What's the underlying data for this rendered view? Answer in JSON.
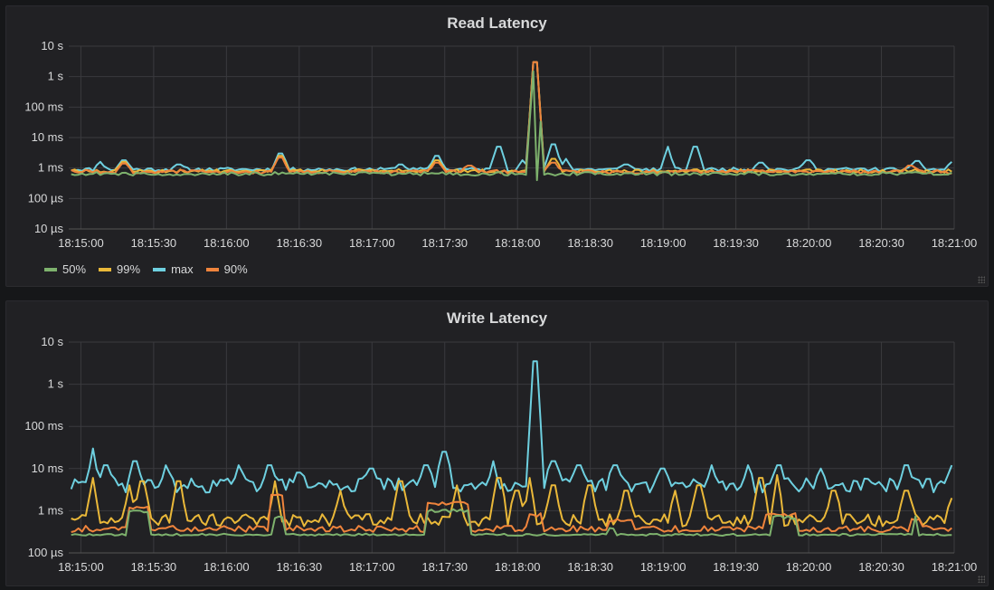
{
  "panels": [
    {
      "title": "Read Latency"
    },
    {
      "title": "Write Latency"
    }
  ],
  "colors": {
    "50%": "#7eb26d",
    "99%": "#eab839",
    "max": "#6ed0e0",
    "90%": "#ef843c"
  },
  "chart_data": [
    {
      "type": "line",
      "title": "Read Latency",
      "y_scale": "log",
      "ylim_seconds": [
        1e-05,
        10
      ],
      "y_ticks": [
        {
          "value": 10,
          "label": "10 s"
        },
        {
          "value": 1,
          "label": "1 s"
        },
        {
          "value": 0.1,
          "label": "100 ms"
        },
        {
          "value": 0.01,
          "label": "10 ms"
        },
        {
          "value": 0.001,
          "label": "1 ms"
        },
        {
          "value": 0.0001,
          "label": "100 µs"
        },
        {
          "value": 1e-05,
          "label": "10 µs"
        }
      ],
      "x_range": [
        "18:14:55",
        "18:21:00"
      ],
      "x_ticks": [
        "18:15:00",
        "18:15:30",
        "18:16:00",
        "18:16:30",
        "18:17:00",
        "18:17:30",
        "18:18:00",
        "18:18:30",
        "18:19:00",
        "18:19:30",
        "18:20:00",
        "18:20:30",
        "18:21:00"
      ],
      "legend": [
        "50%",
        "99%",
        "max",
        "90%"
      ],
      "legend_placement": "bottom-left",
      "grid": true,
      "series": [
        {
          "name": "max",
          "baseline_seconds": 0.0009,
          "spikes": [
            [
              "18:15:08",
              0.0016
            ],
            [
              "18:15:18",
              0.0018
            ],
            [
              "18:15:40",
              0.0013
            ],
            [
              "18:16:22",
              0.003
            ],
            [
              "18:17:12",
              0.0013
            ],
            [
              "18:17:27",
              0.0025
            ],
            [
              "18:17:52",
              0.005
            ],
            [
              "18:18:02",
              0.0018
            ],
            [
              "18:18:07",
              3.0
            ],
            [
              "18:18:15",
              0.006
            ],
            [
              "18:18:20",
              0.002
            ],
            [
              "18:18:45",
              0.0013
            ],
            [
              "18:19:02",
              0.005
            ],
            [
              "18:19:13",
              0.005
            ],
            [
              "18:19:40",
              0.0015
            ],
            [
              "18:20:00",
              0.0018
            ],
            [
              "18:20:45",
              0.0017
            ],
            [
              "18:21:00",
              0.0016
            ]
          ]
        },
        {
          "name": "99%",
          "baseline_seconds": 0.0008,
          "spikes": [
            [
              "18:15:18",
              0.0016
            ],
            [
              "18:16:22",
              0.0025
            ],
            [
              "18:17:27",
              0.0018
            ],
            [
              "18:18:07",
              3.0
            ],
            [
              "18:18:15",
              0.002
            ]
          ]
        },
        {
          "name": "90%",
          "baseline_seconds": 0.00075,
          "spikes": [
            [
              "18:15:18",
              0.0014
            ],
            [
              "18:16:22",
              0.0022
            ],
            [
              "18:17:27",
              0.0015
            ],
            [
              "18:17:40",
              0.0012
            ],
            [
              "18:18:07",
              3.0
            ],
            [
              "18:18:15",
              0.0015
            ],
            [
              "18:20:42",
              0.0012
            ]
          ]
        },
        {
          "name": "50%",
          "baseline_seconds": 0.00065,
          "spikes": [
            [
              "18:18:07",
              1.5
            ],
            [
              "18:18:08",
              0.0004
            ]
          ]
        }
      ]
    },
    {
      "type": "line",
      "title": "Write Latency",
      "y_scale": "log",
      "ylim_seconds": [
        0.0001,
        10
      ],
      "y_ticks": [
        {
          "value": 10,
          "label": "10 s"
        },
        {
          "value": 1,
          "label": "1 s"
        },
        {
          "value": 0.1,
          "label": "100 ms"
        },
        {
          "value": 0.01,
          "label": "10 ms"
        },
        {
          "value": 0.001,
          "label": "1 ms"
        },
        {
          "value": 0.0001,
          "label": "100 µs"
        }
      ],
      "x_range": [
        "18:14:55",
        "18:21:00"
      ],
      "x_ticks": [
        "18:15:00",
        "18:15:30",
        "18:16:00",
        "18:16:30",
        "18:17:00",
        "18:17:30",
        "18:18:00",
        "18:18:30",
        "18:19:00",
        "18:19:30",
        "18:20:00",
        "18:20:30",
        "18:21:00"
      ],
      "legend": [],
      "grid": true,
      "series": [
        {
          "name": "max",
          "baseline_seconds": 0.004,
          "noise": 0.35,
          "spikes": [
            [
              "18:15:05",
              0.03
            ],
            [
              "18:15:10",
              0.012
            ],
            [
              "18:15:22",
              0.015
            ],
            [
              "18:15:35",
              0.012
            ],
            [
              "18:16:05",
              0.012
            ],
            [
              "18:16:18",
              0.012
            ],
            [
              "18:16:30",
              0.008
            ],
            [
              "18:17:00",
              0.01
            ],
            [
              "18:17:22",
              0.012
            ],
            [
              "18:17:30",
              0.025
            ],
            [
              "18:17:50",
              0.015
            ],
            [
              "18:18:07",
              3.5
            ],
            [
              "18:18:15",
              0.015
            ],
            [
              "18:18:25",
              0.012
            ],
            [
              "18:18:40",
              0.012
            ],
            [
              "18:19:00",
              0.01
            ],
            [
              "18:19:20",
              0.012
            ],
            [
              "18:19:35",
              0.012
            ],
            [
              "18:19:48",
              0.012
            ],
            [
              "18:20:05",
              0.01
            ],
            [
              "18:20:40",
              0.012
            ],
            [
              "18:21:00",
              0.012
            ]
          ]
        },
        {
          "name": "99%",
          "baseline_seconds": 0.0006,
          "noise": 0.3,
          "spikes": [
            [
              "18:15:05",
              0.006
            ],
            [
              "18:15:20",
              0.004
            ],
            [
              "18:15:25",
              0.005
            ],
            [
              "18:15:40",
              0.005
            ],
            [
              "18:16:20",
              0.005
            ],
            [
              "18:16:47",
              0.003
            ],
            [
              "18:17:12",
              0.005
            ],
            [
              "18:17:35",
              0.004
            ],
            [
              "18:17:52",
              0.006
            ],
            [
              "18:18:00",
              0.003
            ],
            [
              "18:18:05",
              0.006
            ],
            [
              "18:18:15",
              0.004
            ],
            [
              "18:18:30",
              0.004
            ],
            [
              "18:18:45",
              0.003
            ],
            [
              "18:19:05",
              0.003
            ],
            [
              "18:19:15",
              0.004
            ],
            [
              "18:19:40",
              0.006
            ],
            [
              "18:19:47",
              0.007
            ],
            [
              "18:20:10",
              0.003
            ],
            [
              "18:20:40",
              0.003
            ],
            [
              "18:21:00",
              0.002
            ]
          ]
        },
        {
          "name": "90%",
          "baseline_seconds": 0.00037,
          "noise": 0.15,
          "steps": [
            [
              "18:15:20",
              "18:15:28",
              0.0012
            ],
            [
              "18:16:18",
              "18:16:24",
              0.0025
            ],
            [
              "18:17:22",
              "18:17:40",
              0.0015
            ],
            [
              "18:18:05",
              "18:18:10",
              0.0008
            ],
            [
              "18:18:38",
              "18:18:48",
              0.0006
            ],
            [
              "18:19:42",
              "18:19:55",
              0.0008
            ],
            [
              "18:20:42",
              "18:20:46",
              0.0006
            ]
          ]
        },
        {
          "name": "50%",
          "baseline_seconds": 0.00027,
          "noise": 0.05,
          "steps": [
            [
              "18:15:20",
              "18:15:28",
              0.001
            ],
            [
              "18:16:20",
              "18:16:23",
              0.0007
            ],
            [
              "18:17:22",
              "18:17:40",
              0.001
            ],
            [
              "18:18:38",
              "18:18:40",
              0.0004
            ],
            [
              "18:19:45",
              "18:19:55",
              0.0007
            ],
            [
              "18:20:43",
              "18:20:45",
              0.0008
            ]
          ]
        }
      ]
    }
  ]
}
